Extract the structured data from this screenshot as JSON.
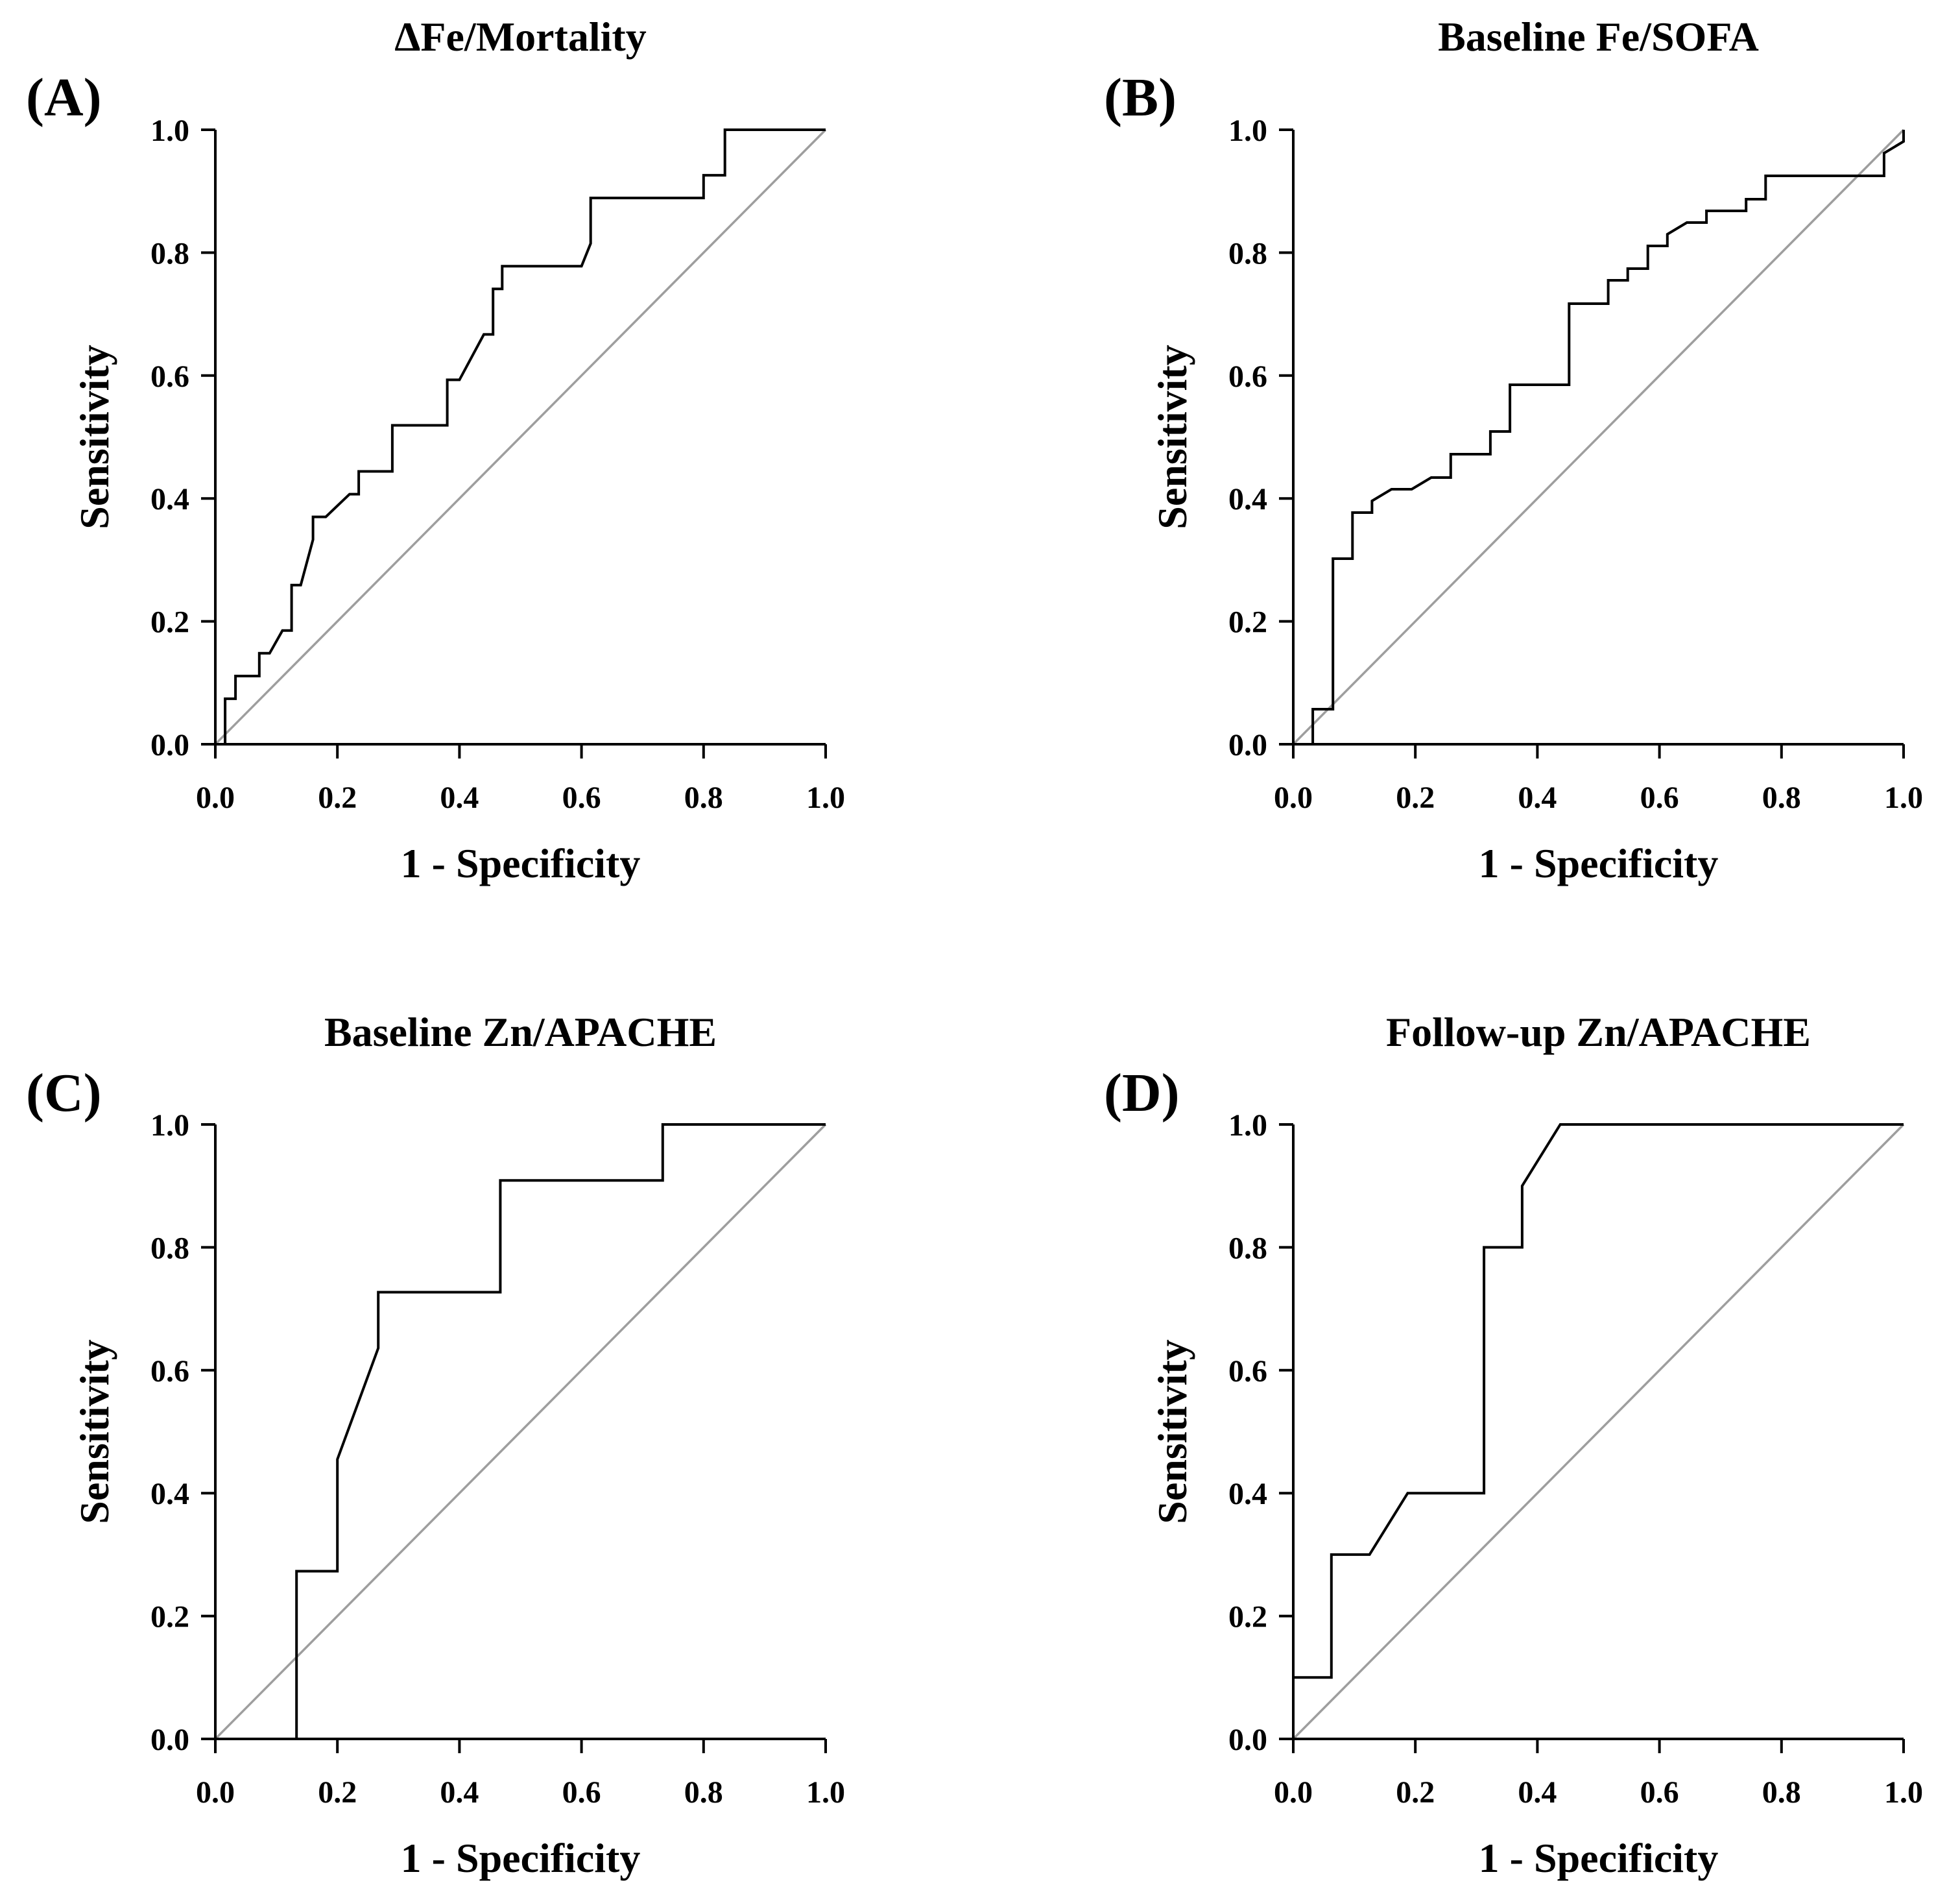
{
  "colors": {
    "roc_line": "#000000",
    "reference_line": "#9e9e9e",
    "background": "#ffffff"
  },
  "chart_data": [
    {
      "panel": "(A)",
      "type": "line",
      "title": "ΔFe/Mortality",
      "xlabel": "1 - Specificity",
      "ylabel": "Sensitivity",
      "xlim": [
        0,
        1
      ],
      "ylim": [
        0,
        1
      ],
      "xticks": [
        "0.0",
        "0.2",
        "0.4",
        "0.6",
        "0.8",
        "1.0"
      ],
      "yticks": [
        "0.0",
        "0.2",
        "0.4",
        "0.6",
        "0.8",
        "1.0"
      ],
      "reference_line": [
        [
          0,
          0
        ],
        [
          1,
          1
        ]
      ],
      "x": [
        0.016,
        0.016,
        0.033,
        0.033,
        0.072,
        0.072,
        0.089,
        0.11,
        0.125,
        0.125,
        0.14,
        0.16,
        0.16,
        0.181,
        0.22,
        0.235,
        0.235,
        0.29,
        0.29,
        0.38,
        0.38,
        0.4,
        0.44,
        0.455,
        0.455,
        0.47,
        0.47,
        0.6,
        0.615,
        0.615,
        0.8,
        0.8,
        0.835,
        0.835,
        1.0
      ],
      "y": [
        0.0,
        0.074,
        0.074,
        0.111,
        0.111,
        0.148,
        0.148,
        0.185,
        0.185,
        0.259,
        0.259,
        0.333,
        0.37,
        0.37,
        0.407,
        0.407,
        0.444,
        0.444,
        0.519,
        0.519,
        0.593,
        0.593,
        0.667,
        0.667,
        0.741,
        0.741,
        0.778,
        0.778,
        0.815,
        0.889,
        0.889,
        0.926,
        0.926,
        1.0,
        1.0
      ]
    },
    {
      "panel": "(B)",
      "type": "line",
      "title": "Baseline Fe/SOFA",
      "xlabel": "1 - Specificity",
      "ylabel": "Sensitivity",
      "xlim": [
        0,
        1
      ],
      "ylim": [
        0,
        1
      ],
      "xticks": [
        "0.0",
        "0.2",
        "0.4",
        "0.6",
        "0.8",
        "1.0"
      ],
      "yticks": [
        "0.0",
        "0.2",
        "0.4",
        "0.6",
        "0.8",
        "1.0"
      ],
      "reference_line": [
        [
          0,
          0
        ],
        [
          1,
          1
        ]
      ],
      "x": [
        0.032,
        0.032,
        0.065,
        0.065,
        0.097,
        0.097,
        0.129,
        0.129,
        0.161,
        0.194,
        0.226,
        0.258,
        0.258,
        0.323,
        0.323,
        0.355,
        0.355,
        0.452,
        0.452,
        0.516,
        0.516,
        0.548,
        0.548,
        0.581,
        0.581,
        0.613,
        0.613,
        0.645,
        0.677,
        0.677,
        0.742,
        0.742,
        0.774,
        0.774,
        0.968,
        0.968,
        1.0,
        1.0
      ],
      "y": [
        0.0,
        0.057,
        0.057,
        0.302,
        0.302,
        0.377,
        0.377,
        0.396,
        0.415,
        0.415,
        0.434,
        0.434,
        0.472,
        0.472,
        0.509,
        0.509,
        0.585,
        0.585,
        0.717,
        0.717,
        0.755,
        0.755,
        0.774,
        0.774,
        0.811,
        0.811,
        0.83,
        0.849,
        0.849,
        0.868,
        0.868,
        0.887,
        0.887,
        0.925,
        0.925,
        0.962,
        0.981,
        1.0
      ]
    },
    {
      "panel": "(C)",
      "type": "line",
      "title": "Baseline Zn/APACHE",
      "xlabel": "1 - Specificity",
      "ylabel": "Sensitivity",
      "xlim": [
        0,
        1
      ],
      "ylim": [
        0,
        1
      ],
      "xticks": [
        "0.0",
        "0.2",
        "0.4",
        "0.6",
        "0.8",
        "1.0"
      ],
      "yticks": [
        "0.0",
        "0.2",
        "0.4",
        "0.6",
        "0.8",
        "1.0"
      ],
      "reference_line": [
        [
          0,
          0
        ],
        [
          1,
          1
        ]
      ],
      "x": [
        0.133,
        0.133,
        0.2,
        0.2,
        0.267,
        0.267,
        0.467,
        0.467,
        0.733,
        0.733,
        1.0
      ],
      "y": [
        0.0,
        0.273,
        0.273,
        0.455,
        0.636,
        0.727,
        0.727,
        0.909,
        0.909,
        1.0,
        1.0
      ]
    },
    {
      "panel": "(D)",
      "type": "line",
      "title": "Follow-up Zn/APACHE",
      "xlabel": "1 - Specificity",
      "ylabel": "Sensitivity",
      "xlim": [
        0,
        1
      ],
      "ylim": [
        0,
        1
      ],
      "xticks": [
        "0.0",
        "0.2",
        "0.4",
        "0.6",
        "0.8",
        "1.0"
      ],
      "yticks": [
        "0.0",
        "0.2",
        "0.4",
        "0.6",
        "0.8",
        "1.0"
      ],
      "reference_line": [
        [
          0,
          0
        ],
        [
          1,
          1
        ]
      ],
      "x": [
        0.0,
        0.0,
        0.0625,
        0.0625,
        0.125,
        0.1875,
        0.3125,
        0.3125,
        0.375,
        0.375,
        0.4375,
        1.0
      ],
      "y": [
        0.0,
        0.1,
        0.1,
        0.3,
        0.3,
        0.4,
        0.4,
        0.8,
        0.8,
        0.9,
        1.0,
        1.0
      ]
    }
  ]
}
